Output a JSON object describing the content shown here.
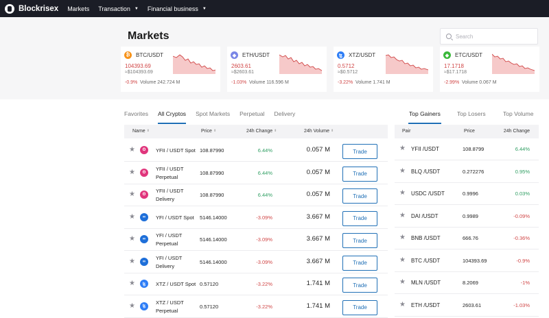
{
  "nav": {
    "brand": "Blockrisex",
    "items": [
      {
        "label": "Markets"
      },
      {
        "label": "Transaction",
        "caret": "▼"
      },
      {
        "label": "Financial business",
        "caret": "▼"
      }
    ]
  },
  "hero": {
    "title": "Markets",
    "search_placeholder": "Search",
    "tickers": [
      {
        "pair": "BTC/USDT",
        "price": "104393.69",
        "usd": "≈$104393.69",
        "change": "-0.9%",
        "volume": "Volume 242.724 M",
        "coin_color": "#f7931a",
        "coin_glyph": "₿",
        "icon": "bitcoin-icon"
      },
      {
        "pair": "ETH/USDT",
        "price": "2603.61",
        "usd": "≈$2603.61",
        "change": "-1.03%",
        "volume": "Volume 116.596 M",
        "coin_color": "#7a86e6",
        "coin_glyph": "◆",
        "icon": "ethereum-icon"
      },
      {
        "pair": "XTZ/USDT",
        "price": "0.5712",
        "usd": "≈$0.5712",
        "change": "-3.22%",
        "volume": "Volume 1.741 M",
        "coin_color": "#2d7df6",
        "coin_glyph": "ꜩ",
        "icon": "tezos-icon"
      },
      {
        "pair": "ETC/USDT",
        "price": "17.1718",
        "usd": "≈$17.1718",
        "change": "-2.99%",
        "volume": "Volume 0.067 M",
        "coin_color": "#3ab83a",
        "coin_glyph": "◆",
        "icon": "ethereum-classic-icon"
      }
    ]
  },
  "market_tabs": [
    "Favorites",
    "All Cryptos",
    "Spot Markets",
    "Perpetual",
    "Delivery"
  ],
  "market_active_tab": "All Cryptos",
  "market_table": {
    "headers": {
      "name": "Name",
      "price": "Price",
      "change": "24h Change",
      "volume": "24h Volume",
      "sort_glyph": "⬍"
    },
    "trade_label": "Trade",
    "star_glyph": "★",
    "rows": [
      {
        "line1": "YFII / USDT Spot",
        "line2": "",
        "price": "108.87990",
        "change": "6.44%",
        "direction": "up",
        "volume": "0.057 M",
        "coin_color": "#e0357c",
        "coin_glyph": "ʘ",
        "icon": "yfii-coin-icon"
      },
      {
        "line1": "YFII / USDT",
        "line2": "Perpetual",
        "price": "108.87990",
        "change": "6.44%",
        "direction": "up",
        "volume": "0.057 M",
        "coin_color": "#e0357c",
        "coin_glyph": "ʘ",
        "icon": "yfii-coin-icon"
      },
      {
        "line1": "YFII / USDT",
        "line2": "Delivery",
        "price": "108.87990",
        "change": "6.44%",
        "direction": "up",
        "volume": "0.057 M",
        "coin_color": "#e0357c",
        "coin_glyph": "ʘ",
        "icon": "yfii-coin-icon"
      },
      {
        "line1": "YFI / USDT Spot",
        "line2": "",
        "price": "5146.14000",
        "change": "-3.09%",
        "direction": "down",
        "volume": "3.667 M",
        "coin_color": "#1e6fd9",
        "coin_glyph": "∞",
        "icon": "yfi-coin-icon"
      },
      {
        "line1": "YFI / USDT",
        "line2": "Perpetual",
        "price": "5146.14000",
        "change": "-3.09%",
        "direction": "down",
        "volume": "3.667 M",
        "coin_color": "#1e6fd9",
        "coin_glyph": "∞",
        "icon": "yfi-coin-icon"
      },
      {
        "line1": "YFI / USDT",
        "line2": "Delivery",
        "price": "5146.14000",
        "change": "-3.09%",
        "direction": "down",
        "volume": "3.667 M",
        "coin_color": "#1e6fd9",
        "coin_glyph": "∞",
        "icon": "yfi-coin-icon"
      },
      {
        "line1": "XTZ / USDT Spot",
        "line2": "",
        "price": "0.57120",
        "change": "-3.22%",
        "direction": "down",
        "volume": "1.741 M",
        "coin_color": "#2d7df6",
        "coin_glyph": "ꜩ",
        "icon": "tezos-icon"
      },
      {
        "line1": "XTZ / USDT",
        "line2": "Perpetual",
        "price": "0.57120",
        "change": "-3.22%",
        "direction": "down",
        "volume": "1.741 M",
        "coin_color": "#2d7df6",
        "coin_glyph": "ꜩ",
        "icon": "tezos-icon"
      }
    ]
  },
  "ranking_tabs": [
    "Top Gainers",
    "Top Losers",
    "Top Volume"
  ],
  "ranking_active_tab": "Top Gainers",
  "ranking_table": {
    "headers": {
      "pair": "Pair",
      "price": "Price",
      "change": "24h Change"
    },
    "rows": [
      {
        "pair": "YFII /USDT",
        "price": "108.8799",
        "change": "6.44%",
        "direction": "up"
      },
      {
        "pair": "BLQ /USDT",
        "price": "0.272276",
        "change": "0.95%",
        "direction": "up"
      },
      {
        "pair": "USDC /USDT",
        "price": "0.9996",
        "change": "0.03%",
        "direction": "up"
      },
      {
        "pair": "DAI /USDT",
        "price": "0.9989",
        "change": "-0.09%",
        "direction": "down"
      },
      {
        "pair": "BNB /USDT",
        "price": "666.76",
        "change": "-0.36%",
        "direction": "down"
      },
      {
        "pair": "BTC /USDT",
        "price": "104393.69",
        "change": "-0.9%",
        "direction": "down"
      },
      {
        "pair": "MLN /USDT",
        "price": "8.2069",
        "change": "-1%",
        "direction": "down"
      },
      {
        "pair": "ETH /USDT",
        "price": "2603.61",
        "change": "-1.03%",
        "direction": "down"
      }
    ]
  },
  "colors": {
    "up": "#2f9e62",
    "down": "#d04545",
    "accent": "#1f6fb6",
    "nav_bg": "#1b1d26"
  }
}
